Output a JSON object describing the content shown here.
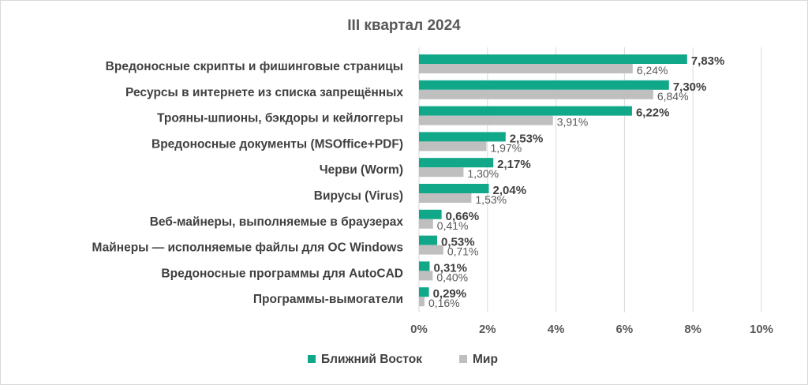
{
  "colors": {
    "series1": "#11a88a",
    "series2": "#bfbfbf",
    "grid": "#d9d9d9"
  },
  "chart_data": {
    "type": "bar",
    "orientation": "horizontal",
    "title": "III квартал 2024",
    "categories": [
      "Вредоносные скрипты и фишинговые страницы",
      "Ресурсы в интернете из списка запрещённых",
      "Трояны-шпионы, бэкдоры и кейлоггеры",
      "Вредоносные документы (MSOffice+PDF)",
      "Черви (Worm)",
      "Вирусы (Virus)",
      "Веб-майнеры, выполняемые в браузерах",
      "Майнеры — исполняемые файлы для ОС Windows",
      "Вредоносные программы для AutoCAD",
      "Программы-вымогатели"
    ],
    "series": [
      {
        "name": "Ближний Восток",
        "color": "#11a88a",
        "values": [
          7.83,
          7.3,
          6.22,
          2.53,
          2.17,
          2.04,
          0.66,
          0.53,
          0.31,
          0.29
        ],
        "labels": [
          "7,83%",
          "7,30%",
          "6,22%",
          "2,53%",
          "2,17%",
          "2,04%",
          "0,66%",
          "0,53%",
          "0,31%",
          "0,29%"
        ]
      },
      {
        "name": "Мир",
        "color": "#bfbfbf",
        "values": [
          6.24,
          6.84,
          3.91,
          1.97,
          1.3,
          1.53,
          0.41,
          0.71,
          0.4,
          0.16
        ],
        "labels": [
          "6,24%",
          "6,84%",
          "3,91%",
          "1,97%",
          "1,30%",
          "1,53%",
          "0,41%",
          "0,71%",
          "0,40%",
          "0,16%"
        ]
      }
    ],
    "xlim": [
      0,
      10
    ],
    "xticks": [
      0,
      2,
      4,
      6,
      8,
      10
    ],
    "xtick_labels": [
      "0%",
      "2%",
      "4%",
      "6%",
      "8%",
      "10%"
    ],
    "grid": true,
    "legend_position": "bottom"
  }
}
